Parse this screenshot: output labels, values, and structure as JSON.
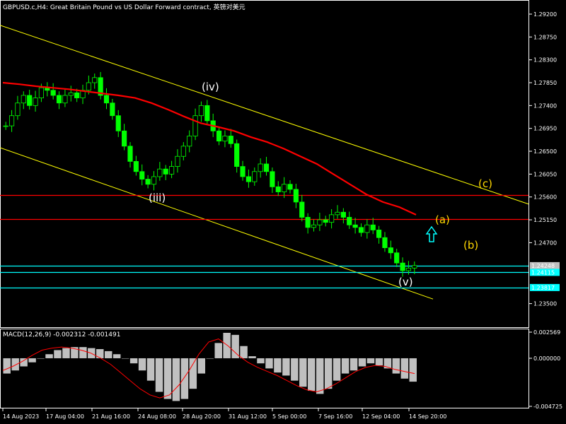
{
  "chart_title": "GBPUSD.c,H4:  Great Britain Pound vs US Dollar Forward contract, 英镑对美元",
  "macd_label": "MACD(12,26,9) -0.002312 -0.001491",
  "colors": {
    "background": "#000000",
    "frame": "#ffffff",
    "candle": "#00ff00",
    "moving_average": "#ff0000",
    "channel": "#ffff00",
    "resistance": "#ff0000",
    "support": "#00ffff",
    "wave_white": "#ffffff",
    "wave_yellow": "#ffd700",
    "arrow": "#00ffff",
    "histogram": "#c0c0c0",
    "signal": "#ff0000"
  },
  "icons": {
    "up_arrow": "hollow-up-arrow-icon"
  },
  "chart_data": {
    "type": "line",
    "title": "GBPUSD.c,H4:  Great Britain Pound vs US Dollar Forward contract, 英镑对美元",
    "y_ticks": [
      "1.29200",
      "1.28750",
      "1.28300",
      "1.27850",
      "1.27400",
      "1.26950",
      "1.26500",
      "1.26050",
      "1.25600",
      "1.25150",
      "1.24700",
      "1.24248",
      "1.24115",
      "1.23817",
      "1.23500"
    ],
    "y_range": [
      1.2305,
      1.2945
    ],
    "x_ticks": [
      "14 Aug 2023",
      "17 Aug 04:00",
      "21 Aug 16:00",
      "24 Aug 08:00",
      "28 Aug 20:00",
      "31 Aug 12:00",
      "5 Sep 00:00",
      "7 Sep 16:00",
      "12 Sep 04:00",
      "14 Sep 20:00"
    ],
    "series": [
      {
        "values": [
          1.27,
          1.272,
          1.2745,
          1.276,
          1.274,
          1.2755,
          1.2775,
          1.277,
          1.276,
          1.2745,
          1.276,
          1.2765,
          1.2755,
          1.277,
          1.2785,
          1.2795,
          1.276,
          1.2745,
          1.272,
          1.269,
          1.266,
          1.263,
          1.261,
          1.2595,
          1.2585,
          1.26,
          1.2615,
          1.2605,
          1.262,
          1.264,
          1.266,
          1.268,
          1.272,
          1.274,
          1.271,
          1.269,
          1.267,
          1.268,
          1.2665,
          1.262,
          1.26,
          1.259,
          1.261,
          1.2625,
          1.261,
          1.258,
          1.257,
          1.2585,
          1.2575,
          1.255,
          1.252,
          1.25,
          1.2505,
          1.2515,
          1.251,
          1.2525,
          1.253,
          1.252,
          1.2505,
          1.25,
          1.249,
          1.2505,
          1.2495,
          1.248,
          1.246,
          1.245,
          1.243,
          1.2415,
          1.242,
          1.2425
        ]
      },
      {
        "name": "",
        "values": [
          1.2785,
          1.2782,
          1.2778,
          1.2775,
          1.2772,
          1.2768,
          1.2764,
          1.276,
          1.2755,
          1.2745,
          1.2732,
          1.2718,
          1.2705,
          1.2698,
          1.269,
          1.2678,
          1.2668,
          1.2655,
          1.264,
          1.2625,
          1.2605,
          1.2585,
          1.2565,
          1.255,
          1.254,
          1.2525
        ]
      }
    ],
    "horizontal_lines": [
      {
        "price": 1.25644,
        "label": "1.25644",
        "color": "#ff0000"
      },
      {
        "price": 1.2516,
        "label": "1.25160",
        "color": "#ff0000"
      },
      {
        "price": 1.24248,
        "label": "1.24248",
        "color": "#00ffff"
      },
      {
        "price": 1.24115,
        "label": "1.24115",
        "color": "#00ffff"
      },
      {
        "price": 1.23817,
        "label": "1.23817",
        "color": "#00ffff"
      }
    ],
    "wave_labels": [
      {
        "text": "(iv)",
        "color": "#ffffff"
      },
      {
        "text": "(iii)",
        "color": "#ffffff"
      },
      {
        "text": "(v)",
        "color": "#ffffff"
      },
      {
        "text": "(a)",
        "color": "#ffd700"
      },
      {
        "text": "(b)",
        "color": "#ffd700"
      },
      {
        "text": "(c)",
        "color": "#ffd700"
      }
    ],
    "macd": {
      "y_ticks": [
        "0.002569",
        "0.000000",
        "-0.004725"
      ],
      "y_range": [
        -0.004725,
        0.002569
      ],
      "histogram": [
        -0.0015,
        -0.0012,
        -0.0008,
        -0.0004,
        0.0,
        0.0004,
        0.0008,
        0.001,
        0.0011,
        0.0011,
        0.001,
        0.0009,
        0.0007,
        0.0004,
        0.0,
        -0.0005,
        -0.0012,
        -0.0022,
        -0.0033,
        -0.004,
        -0.0042,
        -0.004,
        -0.003,
        -0.0015,
        0.0,
        0.0015,
        0.0025,
        0.0023,
        0.0012,
        0.0002,
        -0.0005,
        -0.001,
        -0.0014,
        -0.0017,
        -0.0022,
        -0.0028,
        -0.0032,
        -0.0035,
        -0.003,
        -0.0022,
        -0.0015,
        -0.0012,
        -0.0008,
        -0.0005,
        -0.0007,
        -0.001,
        -0.0015,
        -0.002,
        -0.0023
      ],
      "signal": [
        -0.0012,
        -0.0008,
        -0.0003,
        0.0003,
        0.0008,
        0.001,
        0.0011,
        0.001,
        0.0008,
        0.0005,
        0.0,
        -0.0006,
        -0.0014,
        -0.0022,
        -0.003,
        -0.0036,
        -0.0039,
        -0.0036,
        -0.0026,
        -0.0012,
        0.0004,
        0.0016,
        0.0019,
        0.0012,
        0.0003,
        -0.0004,
        -0.0009,
        -0.0013,
        -0.0017,
        -0.0022,
        -0.0027,
        -0.0031,
        -0.0033,
        -0.003,
        -0.0025,
        -0.0019,
        -0.0013,
        -0.0009,
        -0.0007,
        -0.0008,
        -0.0011,
        -0.0013,
        -0.0015
      ]
    }
  }
}
